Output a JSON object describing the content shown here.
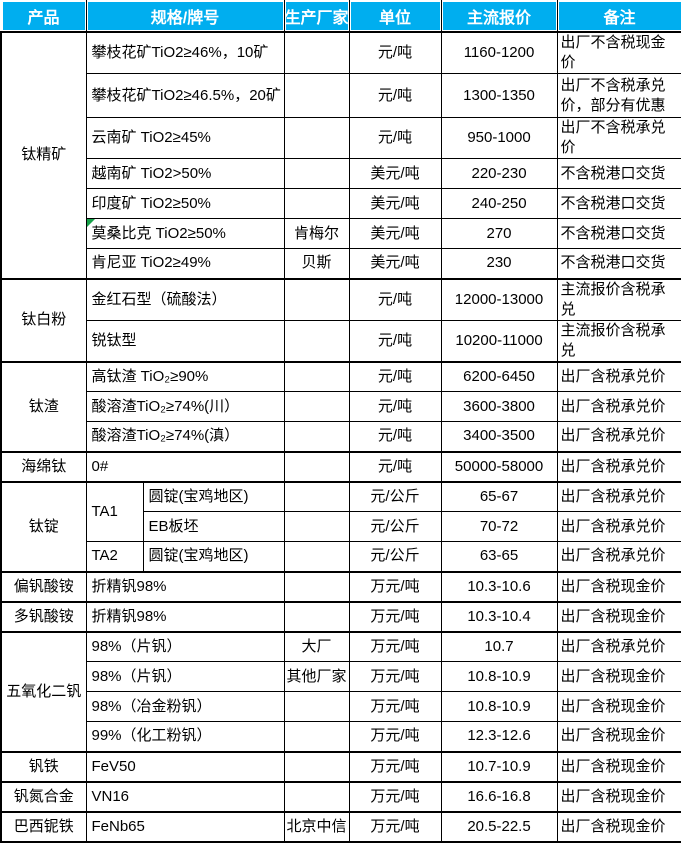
{
  "colors": {
    "header_bg": "#00AEEF",
    "header_text": "#FFFFFF",
    "grid": "#000000",
    "comment_marker_green": "#17A24A"
  },
  "table": {
    "header": [
      "产品",
      "规格/牌号",
      "生产厂家",
      "单位",
      "主流报价",
      "备注"
    ],
    "groups": [
      {
        "product": "钛精矿",
        "rows": [
          {
            "spec": "攀枝花矿TiO2≥46%，10矿",
            "maker": "",
            "unit": "元/吨",
            "price": "1160-1200",
            "note": "出厂不含税现金价"
          },
          {
            "spec": "攀枝花矿TiO2≥46.5%，20矿",
            "maker": "",
            "unit": "元/吨",
            "price": "1300-1350",
            "note": "出厂不含税承兑价，部分有优惠",
            "tall": true
          },
          {
            "spec": "云南矿 TiO2≥45%",
            "maker": "",
            "unit": "元/吨",
            "price": "950-1000",
            "note": "出厂不含税承兑价"
          },
          {
            "spec": "越南矿 TiO2>50%",
            "maker": "",
            "unit": "美元/吨",
            "price": "220-230",
            "note": "不含税港口交货"
          },
          {
            "spec": "印度矿 TiO2≥50%",
            "maker": "",
            "unit": "美元/吨",
            "price": "240-250",
            "note": "不含税港口交货"
          },
          {
            "spec": "莫桑比克 TiO2≥50%",
            "maker": "肯梅尔",
            "unit": "美元/吨",
            "price": "270",
            "note": "不含税港口交货",
            "marker": true
          },
          {
            "spec": "肯尼亚 TiO2≥49%",
            "maker": "贝斯",
            "unit": "美元/吨",
            "price": "230",
            "note": "不含税港口交货"
          }
        ]
      },
      {
        "product": "钛白粉",
        "rows": [
          {
            "spec": "金红石型（硫酸法）",
            "maker": "",
            "unit": "元/吨",
            "price": "12000-13000",
            "note": "主流报价含税承兑"
          },
          {
            "spec": "锐钛型",
            "maker": "",
            "unit": "元/吨",
            "price": "10200-11000",
            "note": "主流报价含税承兑"
          }
        ]
      },
      {
        "product": "钛渣",
        "rows": [
          {
            "spec": "高钛渣 TiO₂≥90%",
            "maker": "",
            "unit": "元/吨",
            "price": "6200-6450",
            "note": "出厂含税承兑价"
          },
          {
            "spec": "酸溶渣TiO₂≥74%(川）",
            "maker": "",
            "unit": "元/吨",
            "price": "3600-3800",
            "note": "出厂含税承兑价"
          },
          {
            "spec": "酸溶渣TiO₂≥74%(滇）",
            "maker": "",
            "unit": "元/吨",
            "price": "3400-3500",
            "note": "出厂含税承兑价"
          }
        ]
      },
      {
        "product": "海绵钛",
        "rows": [
          {
            "spec": "0#",
            "maker": "",
            "unit": "元/吨",
            "price": "50000-58000",
            "note": "出厂含税承兑价"
          }
        ]
      },
      {
        "product": "钛锭",
        "rows": [
          {
            "grade": "TA1",
            "grade_rowspan": 2,
            "spec": "圆锭(宝鸡地区)",
            "maker": "",
            "unit": "元/公斤",
            "price": "65-67",
            "note": "出厂含税承兑价"
          },
          {
            "in_grade_block": true,
            "spec": "EB板坯",
            "maker": "",
            "unit": "元/公斤",
            "price": "70-72",
            "note": "出厂含税承兑价"
          },
          {
            "grade": "TA2",
            "grade_rowspan": 1,
            "spec": "圆锭(宝鸡地区)",
            "maker": "",
            "unit": "元/公斤",
            "price": "63-65",
            "note": "出厂含税承兑价"
          }
        ]
      },
      {
        "product": "偏钒酸铵",
        "rows": [
          {
            "spec": "折精钒98%",
            "maker": "",
            "unit": "万元/吨",
            "price": "10.3-10.6",
            "note": "出厂含税现金价"
          }
        ]
      },
      {
        "product": "多钒酸铵",
        "rows": [
          {
            "spec": "折精钒98%",
            "maker": "",
            "unit": "万元/吨",
            "price": "10.3-10.4",
            "note": "出厂含税现金价"
          }
        ]
      },
      {
        "product": "五氧化二钒",
        "rows": [
          {
            "spec": "98%（片钒）",
            "maker": "大厂",
            "unit": "万元/吨",
            "price": "10.7",
            "note": "出厂含税承兑价"
          },
          {
            "spec": "98%（片钒）",
            "maker": "其他厂家",
            "unit": "万元/吨",
            "price": "10.8-10.9",
            "note": "出厂含税现金价"
          },
          {
            "spec": "98%（冶金粉钒）",
            "maker": "",
            "unit": "万元/吨",
            "price": "10.8-10.9",
            "note": "出厂含税现金价"
          },
          {
            "spec": "99%（化工粉钒）",
            "maker": "",
            "unit": "万元/吨",
            "price": "12.3-12.6",
            "note": "出厂含税现金价"
          }
        ]
      },
      {
        "product": "钒铁",
        "rows": [
          {
            "spec": "FeV50",
            "maker": "",
            "unit": "万元/吨",
            "price": "10.7-10.9",
            "note": "出厂含税现金价"
          }
        ]
      },
      {
        "product": "钒氮合金",
        "rows": [
          {
            "spec": "VN16",
            "maker": "",
            "unit": "万元/吨",
            "price": "16.6-16.8",
            "note": "出厂含税现金价"
          }
        ]
      },
      {
        "product": "巴西铌铁",
        "rows": [
          {
            "spec": "FeNb65",
            "maker": "北京中信",
            "unit": "万元/吨",
            "price": "20.5-22.5",
            "note": "出厂含税现金价"
          }
        ]
      }
    ]
  }
}
